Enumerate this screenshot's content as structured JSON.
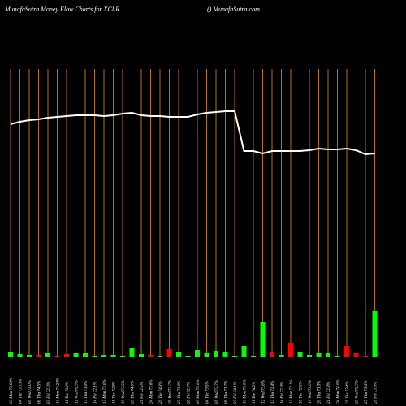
{
  "chart_data": {
    "type": "combo",
    "title": "MunafaSutra  Money Flow  Charts for XCLR",
    "subtitle": "() MunafaSutra.com",
    "categories": [
      "03 Mon 73.92%",
      "04 Tue 73.13%",
      "05 Wed 74.0%",
      "06 Thu 74.5%",
      "07 Fri 72.0%",
      "10 Mon 74.28%",
      "11 Tue 73.1%",
      "12 Wed 72.9%",
      "13 Thu 73.0%",
      "14 Fri 72.1%",
      "17 Mon 73.0%",
      "18 Tue 72.8%",
      "19 Wed 73.5%",
      "20 Thu 74.0%",
      "21 Fri 72.5%",
      "24 Mon 73.6%",
      "25 Tue 74.3%",
      "26 Wed 72.2%",
      "27 Thu 73.0%",
      "28 Fri 72.7%",
      "03 Mon 74.0%",
      "04 Tue 73.5%",
      "05 Wed 73.7%",
      "06 Thu 73.2%",
      "07 Fri 74.1%",
      "10 Mon 75.0%",
      "11 Tue 74.2%",
      "12 Wed 73.6%",
      "13 Thu 72.4%",
      "14 Fri 72.9%",
      "17 Mon 73.1%",
      "18 Tue 72.6%",
      "19 Wed 73.0%",
      "20 Thu 73.3%",
      "21 Fri 72.8%",
      "24 Mon 74.0%",
      "25 Tue 73.4%",
      "26 Wed 72.9%",
      "27 Thu 73.6%",
      "28 Fri 73.9%"
    ],
    "ylim": [
      0,
      355
    ],
    "series": [
      {
        "kind": "line",
        "color": "#ffffff",
        "values": [
          287,
          290,
          292,
          293,
          295,
          296,
          297,
          298,
          298,
          298,
          297,
          298,
          300,
          301,
          298,
          297,
          297,
          296,
          296,
          296,
          299,
          301,
          302,
          303,
          303,
          254,
          254,
          251,
          254,
          254,
          254,
          254,
          255,
          257,
          256,
          256,
          257,
          255,
          250,
          251
        ]
      },
      {
        "kind": "bar",
        "colors": [
          "#00ff00",
          "#00ff00",
          "#00ff00",
          "#ff0000",
          "#00ff00",
          "#ff0000",
          "#ff0000",
          "#00ff00",
          "#00ff00",
          "#00ff00",
          "#00ff00",
          "#00ff00",
          "#00ff00",
          "#00ff00",
          "#00ff00",
          "#ff0000",
          "#00ff00",
          "#ff0000",
          "#00ff00",
          "#00ff00",
          "#00ff00",
          "#00ff00",
          "#00ff00",
          "#00ff00",
          "#00ff00",
          "#00ff00",
          "#00ff00",
          "#00ff00",
          "#ff0000",
          "#00ff00",
          "#ff0000",
          "#00ff00",
          "#00ff00",
          "#00ff00",
          "#00ff00",
          "#00ff00",
          "#ff0000",
          "#ff0000",
          "#ff0000",
          "#00ff00"
        ],
        "values": [
          7,
          4,
          3,
          3,
          5,
          2,
          4,
          5,
          5,
          2,
          3,
          3,
          2,
          11,
          4,
          3,
          2,
          10,
          6,
          2,
          9,
          5,
          8,
          6,
          2,
          14,
          2,
          44,
          6,
          3,
          17,
          6,
          3,
          5,
          5,
          2,
          14,
          5,
          2,
          57
        ]
      }
    ],
    "grid_color": "#b8700a"
  }
}
